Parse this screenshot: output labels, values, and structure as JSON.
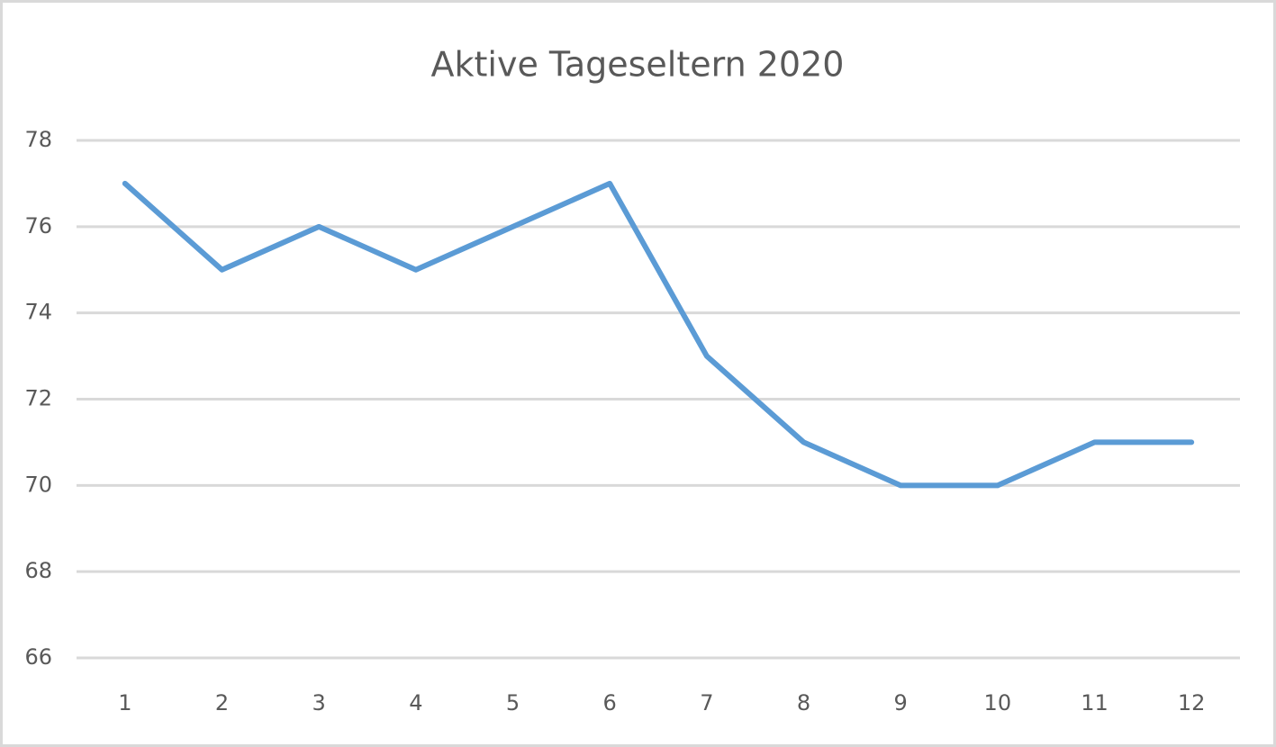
{
  "chart_data": {
    "type": "line",
    "title": "Aktive Tageseltern 2020",
    "categories": [
      "1",
      "2",
      "3",
      "4",
      "5",
      "6",
      "7",
      "8",
      "9",
      "10",
      "11",
      "12"
    ],
    "values": [
      77,
      75,
      76,
      75,
      76,
      77,
      73,
      71,
      70,
      70,
      71,
      71
    ],
    "color": "#5b9bd5",
    "ylim": [
      66,
      78
    ],
    "yticks": [
      66,
      68,
      70,
      72,
      74,
      76,
      78
    ],
    "grid": true
  }
}
